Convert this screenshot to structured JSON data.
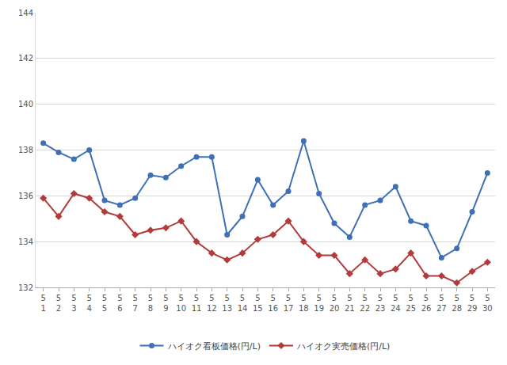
{
  "chart_data": {
    "type": "line",
    "categories": [
      "5\n1",
      "5\n2",
      "5\n3",
      "5\n4",
      "5\n5",
      "5\n6",
      "5\n7",
      "5\n8",
      "5\n9",
      "5\n10",
      "5\n11",
      "5\n12",
      "5\n13",
      "5\n14",
      "5\n15",
      "5\n16",
      "5\n17",
      "5\n18",
      "5\n19",
      "5\n20",
      "5\n21",
      "5\n22",
      "5\n23",
      "5\n24",
      "5\n25",
      "5\n26",
      "5\n27",
      "5\n28",
      "5\n29",
      "5\n30"
    ],
    "series": [
      {
        "name": "ハイオク看板価格(円/L)",
        "color": "#3f6fb5",
        "marker": "circle",
        "values": [
          138.3,
          137.9,
          137.6,
          138.0,
          135.8,
          135.6,
          135.9,
          136.9,
          136.8,
          137.3,
          137.7,
          137.7,
          134.3,
          135.1,
          136.7,
          135.6,
          136.2,
          138.4,
          136.1,
          134.8,
          134.2,
          135.6,
          135.8,
          136.4,
          134.9,
          134.7,
          133.3,
          133.7,
          135.3,
          137.0
        ]
      },
      {
        "name": "ハイオク実売価格(円/L)",
        "color": "#b23b3b",
        "marker": "diamond",
        "values": [
          135.9,
          135.1,
          136.1,
          135.9,
          135.3,
          135.1,
          134.3,
          134.5,
          134.6,
          134.9,
          134.0,
          133.5,
          133.2,
          133.5,
          134.1,
          134.3,
          134.9,
          134.0,
          133.4,
          133.4,
          132.6,
          133.2,
          132.6,
          132.8,
          133.5,
          132.5,
          132.5,
          132.2,
          132.7,
          133.1
        ]
      }
    ],
    "ylim": [
      132,
      144
    ],
    "yticks": [
      132,
      134,
      136,
      138,
      140,
      142,
      144
    ],
    "grid": true,
    "legend": "bottom"
  }
}
